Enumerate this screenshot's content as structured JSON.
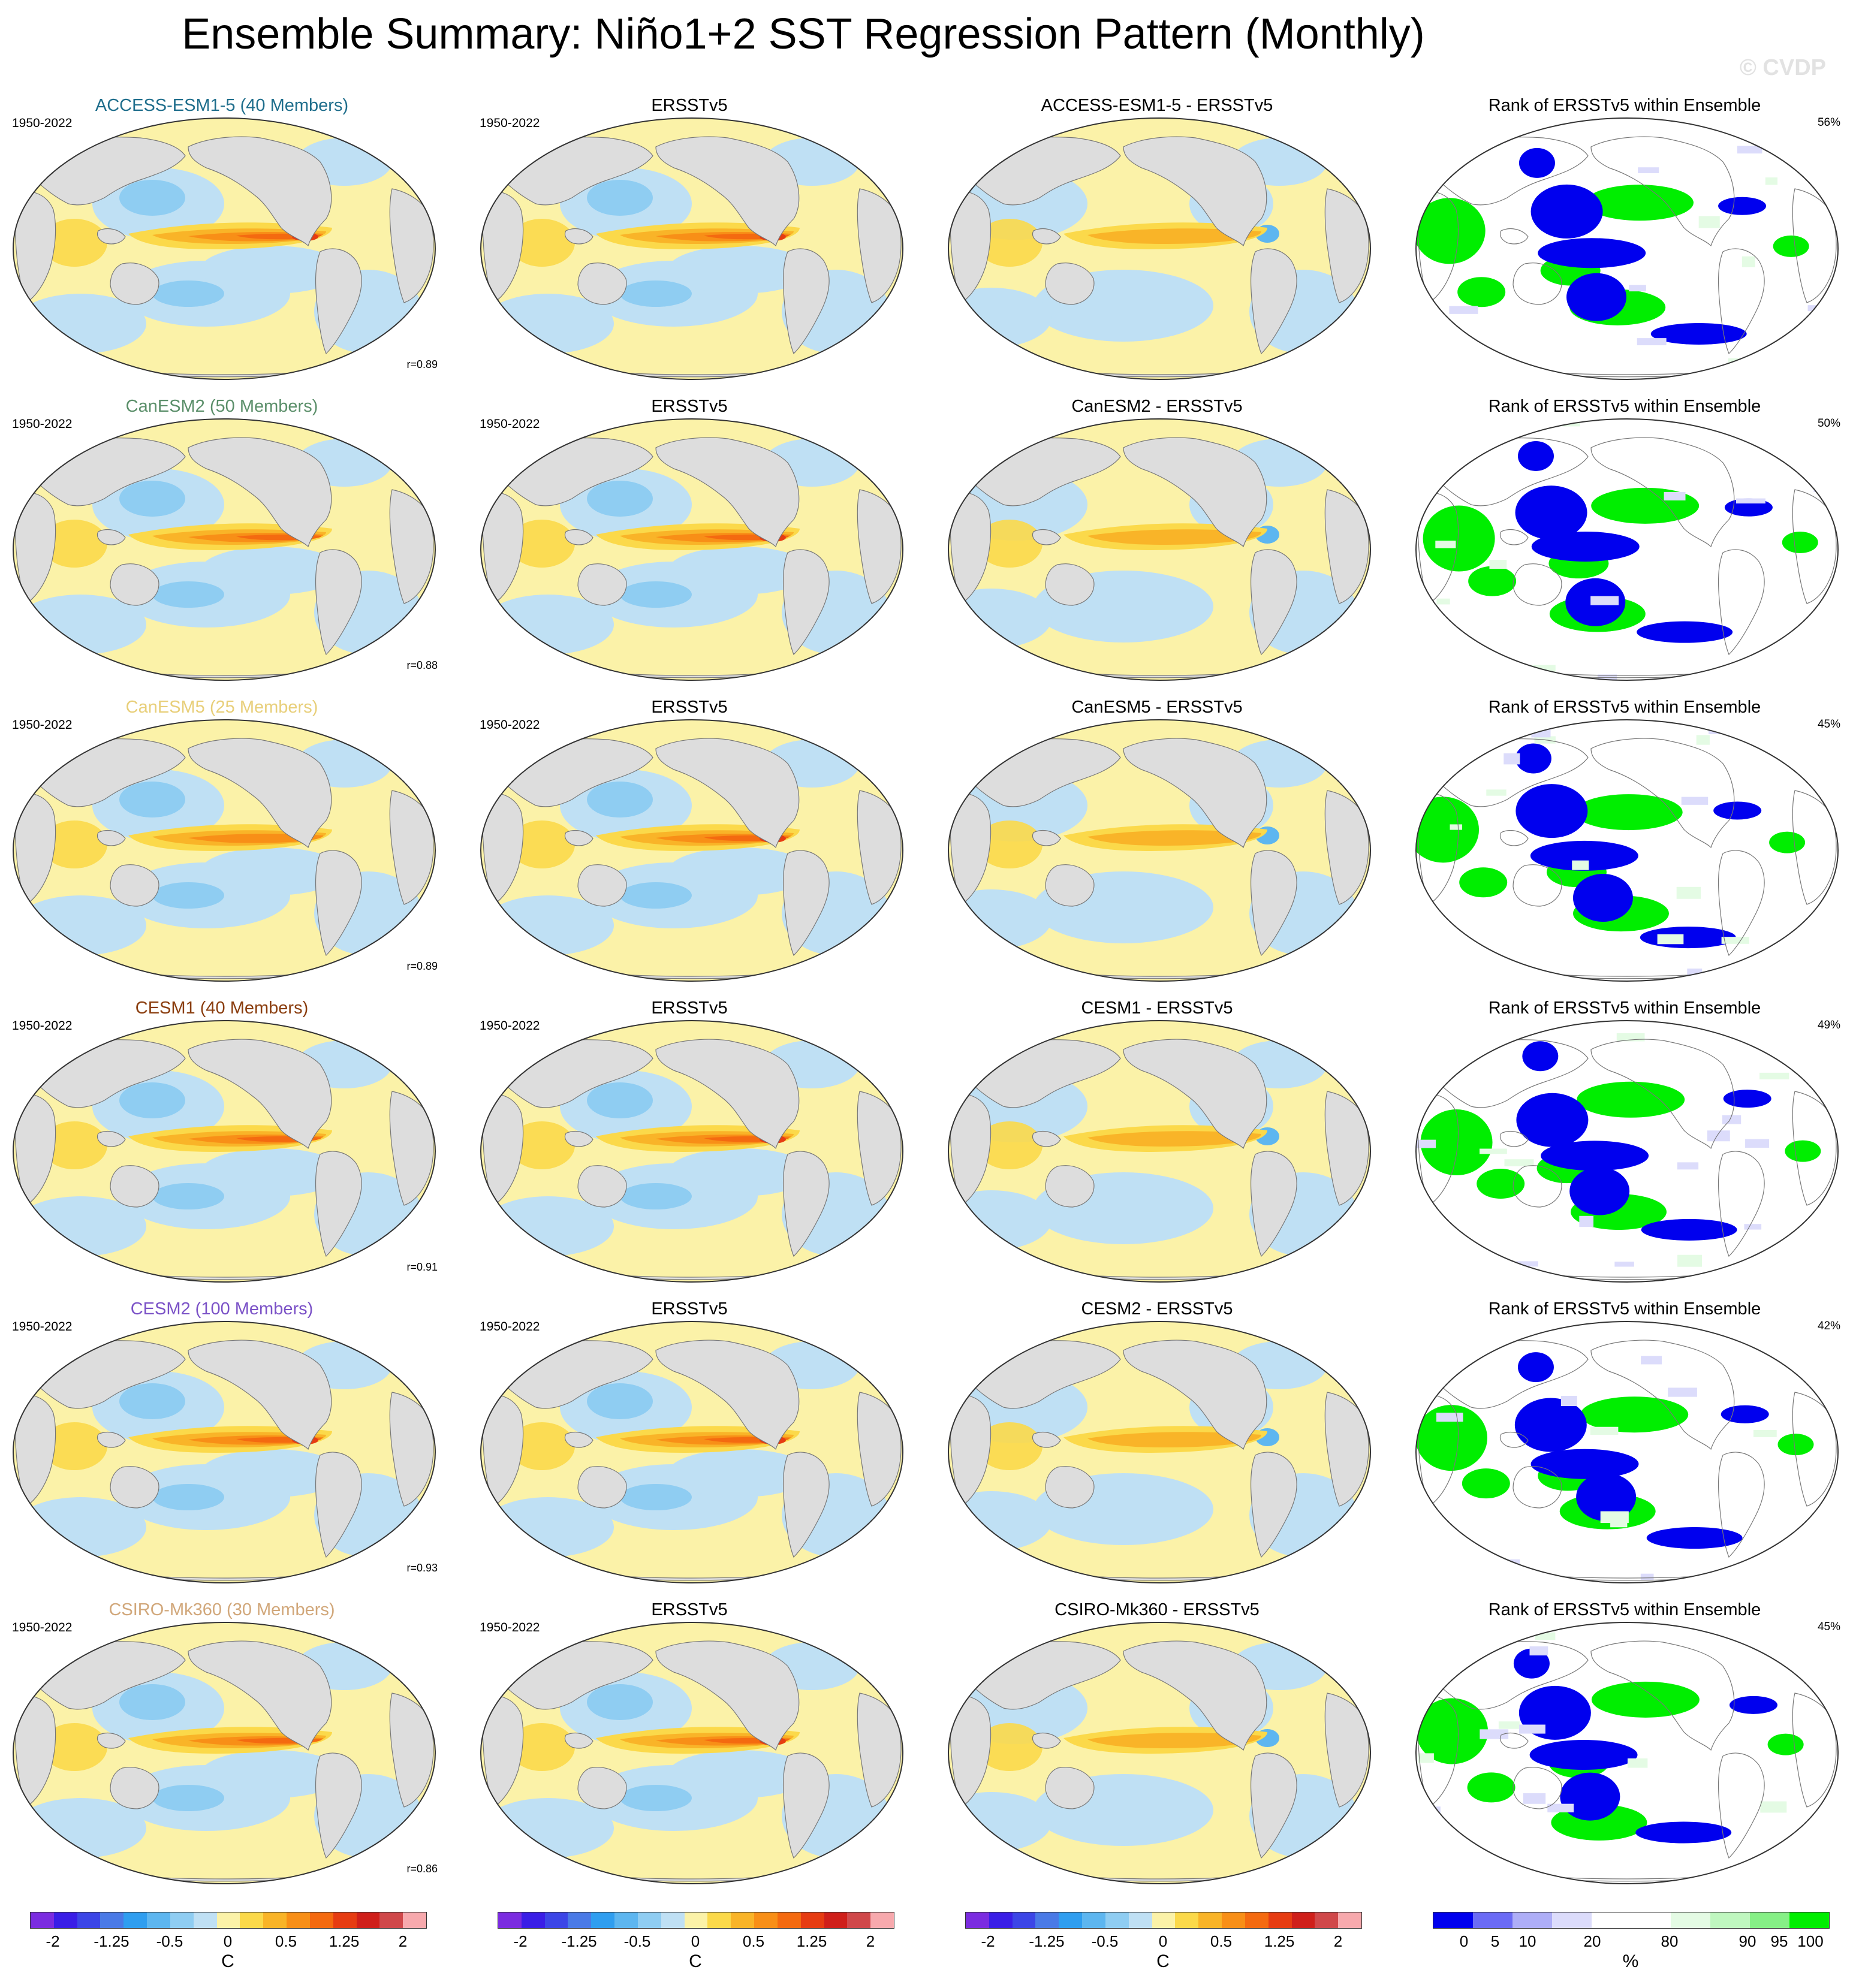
{
  "title": "Ensemble Summary: Niño1+2 SST Regression Pattern (Monthly)",
  "watermark": "© CVDP",
  "ensemble_label_period": "1950-2022",
  "rows": [
    {
      "model_title": "ACCESS-ESM1-5 (40 Members)",
      "model_color": "#1f6e8c",
      "obs_title": "ERSSTv5",
      "obs_period": "",
      "diff_title": "ACCESS-ESM1-5 - ERSSTv5",
      "rank_title": "Rank of ERSSTv5 within Ensemble",
      "rank_pct": "56%",
      "corr": "r=0.89"
    },
    {
      "model_title": "CanESM2 (50 Members)",
      "model_color": "#5b8f6a",
      "obs_title": "ERSSTv5",
      "obs_period": "1950-2022",
      "diff_title": "CanESM2 - ERSSTv5",
      "rank_title": "Rank of ERSSTv5 within Ensemble",
      "rank_pct": "50%",
      "corr": "r=0.88"
    },
    {
      "model_title": "CanESM5 (25 Members)",
      "model_color": "#e8cf7a",
      "obs_title": "ERSSTv5",
      "obs_period": "1950-2022",
      "diff_title": "CanESM5 - ERSSTv5",
      "rank_title": "Rank of ERSSTv5 within Ensemble",
      "rank_pct": "45%",
      "corr": "r=0.89"
    },
    {
      "model_title": "CESM1 (40 Members)",
      "model_color": "#8a3d0e",
      "obs_title": "ERSSTv5",
      "obs_period": "1950-2022",
      "diff_title": "CESM1 - ERSSTv5",
      "rank_title": "Rank of ERSSTv5 within Ensemble",
      "rank_pct": "49%",
      "corr": "r=0.91"
    },
    {
      "model_title": "CESM2 (100 Members)",
      "model_color": "#7b52c7",
      "obs_title": "ERSSTv5",
      "obs_period": "1950-2022",
      "diff_title": "CESM2 - ERSSTv5",
      "rank_title": "Rank of ERSSTv5 within Ensemble",
      "rank_pct": "42%",
      "corr": "r=0.93"
    },
    {
      "model_title": "CSIRO-Mk360 (30 Members)",
      "model_color": "#d1a77a",
      "obs_title": "ERSSTv5",
      "obs_period": "1950-2022",
      "diff_title": "CSIRO-Mk360 - ERSSTv5",
      "rank_title": "Rank of ERSSTv5 within Ensemble",
      "rank_pct": "45%",
      "corr": "r=0.86"
    }
  ],
  "colorbar_sst": {
    "colors": [
      "#7b2ce0",
      "#3a1ee6",
      "#3c46e6",
      "#4a7ae6",
      "#2f9ef0",
      "#5db6f0",
      "#8fcdf2",
      "#bfe0f4",
      "#fbf2a8",
      "#fbd94a",
      "#f9b428",
      "#f88f17",
      "#f46a10",
      "#e63c12",
      "#cf1f1a",
      "#d0484a",
      "#f7a9ad"
    ],
    "labels": [
      "-2",
      "-1.25",
      "-0.5",
      "0",
      "0.5",
      "1.25",
      "2"
    ],
    "unit": "C"
  },
  "colorbar_rank": {
    "colors": [
      "#0000ee",
      "#6b6bf5",
      "#aeaef7",
      "#dcdcfb",
      "#ffffff",
      "#ffffff",
      "#e4fbe4",
      "#bff7bf",
      "#86f086",
      "#00ee00"
    ],
    "labels": [
      "0",
      "5",
      "10",
      "20",
      "80",
      "90",
      "95",
      "100"
    ],
    "unit": "%"
  },
  "colors": {
    "land": "#dddddd",
    "ocean_pos": "#fbf2a8",
    "ocean_neg": "#bfe0f4",
    "rank_hi": "#00ee00",
    "rank_lo": "#0000ee"
  }
}
